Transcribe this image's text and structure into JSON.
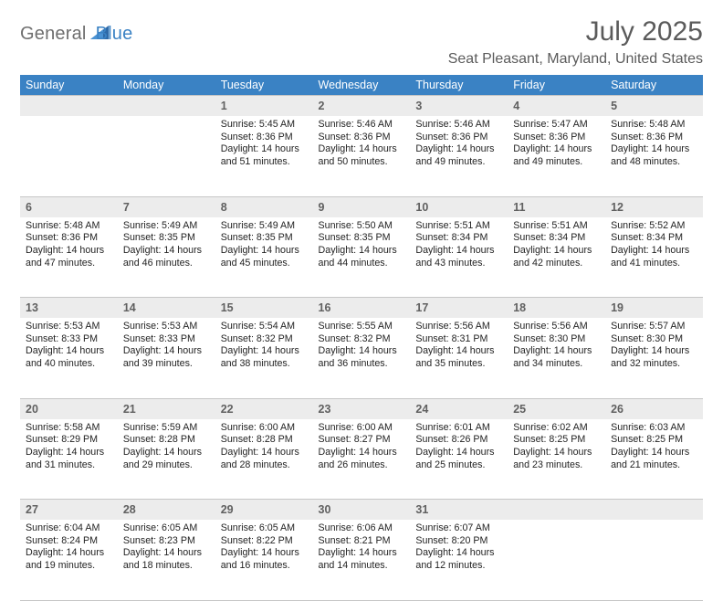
{
  "brand": {
    "part1": "General",
    "part2": "Blue"
  },
  "title": "July 2025",
  "location": "Seat Pleasant, Maryland, United States",
  "colors": {
    "header_bg": "#3a82c4",
    "header_fg": "#ffffff",
    "daynum_bg": "#ececec",
    "border": "#c6c6c6",
    "text": "#232323",
    "muted": "#5b5b5b"
  },
  "typography": {
    "body_size_pt": 8,
    "daynum_size_pt": 9.5,
    "title_size_pt": 22
  },
  "headers": [
    "Sunday",
    "Monday",
    "Tuesday",
    "Wednesday",
    "Thursday",
    "Friday",
    "Saturday"
  ],
  "weeks": [
    [
      null,
      null,
      {
        "n": "1",
        "sr": "Sunrise: 5:45 AM",
        "ss": "Sunset: 8:36 PM",
        "d1": "Daylight: 14 hours",
        "d2": "and 51 minutes."
      },
      {
        "n": "2",
        "sr": "Sunrise: 5:46 AM",
        "ss": "Sunset: 8:36 PM",
        "d1": "Daylight: 14 hours",
        "d2": "and 50 minutes."
      },
      {
        "n": "3",
        "sr": "Sunrise: 5:46 AM",
        "ss": "Sunset: 8:36 PM",
        "d1": "Daylight: 14 hours",
        "d2": "and 49 minutes."
      },
      {
        "n": "4",
        "sr": "Sunrise: 5:47 AM",
        "ss": "Sunset: 8:36 PM",
        "d1": "Daylight: 14 hours",
        "d2": "and 49 minutes."
      },
      {
        "n": "5",
        "sr": "Sunrise: 5:48 AM",
        "ss": "Sunset: 8:36 PM",
        "d1": "Daylight: 14 hours",
        "d2": "and 48 minutes."
      }
    ],
    [
      {
        "n": "6",
        "sr": "Sunrise: 5:48 AM",
        "ss": "Sunset: 8:36 PM",
        "d1": "Daylight: 14 hours",
        "d2": "and 47 minutes."
      },
      {
        "n": "7",
        "sr": "Sunrise: 5:49 AM",
        "ss": "Sunset: 8:35 PM",
        "d1": "Daylight: 14 hours",
        "d2": "and 46 minutes."
      },
      {
        "n": "8",
        "sr": "Sunrise: 5:49 AM",
        "ss": "Sunset: 8:35 PM",
        "d1": "Daylight: 14 hours",
        "d2": "and 45 minutes."
      },
      {
        "n": "9",
        "sr": "Sunrise: 5:50 AM",
        "ss": "Sunset: 8:35 PM",
        "d1": "Daylight: 14 hours",
        "d2": "and 44 minutes."
      },
      {
        "n": "10",
        "sr": "Sunrise: 5:51 AM",
        "ss": "Sunset: 8:34 PM",
        "d1": "Daylight: 14 hours",
        "d2": "and 43 minutes."
      },
      {
        "n": "11",
        "sr": "Sunrise: 5:51 AM",
        "ss": "Sunset: 8:34 PM",
        "d1": "Daylight: 14 hours",
        "d2": "and 42 minutes."
      },
      {
        "n": "12",
        "sr": "Sunrise: 5:52 AM",
        "ss": "Sunset: 8:34 PM",
        "d1": "Daylight: 14 hours",
        "d2": "and 41 minutes."
      }
    ],
    [
      {
        "n": "13",
        "sr": "Sunrise: 5:53 AM",
        "ss": "Sunset: 8:33 PM",
        "d1": "Daylight: 14 hours",
        "d2": "and 40 minutes."
      },
      {
        "n": "14",
        "sr": "Sunrise: 5:53 AM",
        "ss": "Sunset: 8:33 PM",
        "d1": "Daylight: 14 hours",
        "d2": "and 39 minutes."
      },
      {
        "n": "15",
        "sr": "Sunrise: 5:54 AM",
        "ss": "Sunset: 8:32 PM",
        "d1": "Daylight: 14 hours",
        "d2": "and 38 minutes."
      },
      {
        "n": "16",
        "sr": "Sunrise: 5:55 AM",
        "ss": "Sunset: 8:32 PM",
        "d1": "Daylight: 14 hours",
        "d2": "and 36 minutes."
      },
      {
        "n": "17",
        "sr": "Sunrise: 5:56 AM",
        "ss": "Sunset: 8:31 PM",
        "d1": "Daylight: 14 hours",
        "d2": "and 35 minutes."
      },
      {
        "n": "18",
        "sr": "Sunrise: 5:56 AM",
        "ss": "Sunset: 8:30 PM",
        "d1": "Daylight: 14 hours",
        "d2": "and 34 minutes."
      },
      {
        "n": "19",
        "sr": "Sunrise: 5:57 AM",
        "ss": "Sunset: 8:30 PM",
        "d1": "Daylight: 14 hours",
        "d2": "and 32 minutes."
      }
    ],
    [
      {
        "n": "20",
        "sr": "Sunrise: 5:58 AM",
        "ss": "Sunset: 8:29 PM",
        "d1": "Daylight: 14 hours",
        "d2": "and 31 minutes."
      },
      {
        "n": "21",
        "sr": "Sunrise: 5:59 AM",
        "ss": "Sunset: 8:28 PM",
        "d1": "Daylight: 14 hours",
        "d2": "and 29 minutes."
      },
      {
        "n": "22",
        "sr": "Sunrise: 6:00 AM",
        "ss": "Sunset: 8:28 PM",
        "d1": "Daylight: 14 hours",
        "d2": "and 28 minutes."
      },
      {
        "n": "23",
        "sr": "Sunrise: 6:00 AM",
        "ss": "Sunset: 8:27 PM",
        "d1": "Daylight: 14 hours",
        "d2": "and 26 minutes."
      },
      {
        "n": "24",
        "sr": "Sunrise: 6:01 AM",
        "ss": "Sunset: 8:26 PM",
        "d1": "Daylight: 14 hours",
        "d2": "and 25 minutes."
      },
      {
        "n": "25",
        "sr": "Sunrise: 6:02 AM",
        "ss": "Sunset: 8:25 PM",
        "d1": "Daylight: 14 hours",
        "d2": "and 23 minutes."
      },
      {
        "n": "26",
        "sr": "Sunrise: 6:03 AM",
        "ss": "Sunset: 8:25 PM",
        "d1": "Daylight: 14 hours",
        "d2": "and 21 minutes."
      }
    ],
    [
      {
        "n": "27",
        "sr": "Sunrise: 6:04 AM",
        "ss": "Sunset: 8:24 PM",
        "d1": "Daylight: 14 hours",
        "d2": "and 19 minutes."
      },
      {
        "n": "28",
        "sr": "Sunrise: 6:05 AM",
        "ss": "Sunset: 8:23 PM",
        "d1": "Daylight: 14 hours",
        "d2": "and 18 minutes."
      },
      {
        "n": "29",
        "sr": "Sunrise: 6:05 AM",
        "ss": "Sunset: 8:22 PM",
        "d1": "Daylight: 14 hours",
        "d2": "and 16 minutes."
      },
      {
        "n": "30",
        "sr": "Sunrise: 6:06 AM",
        "ss": "Sunset: 8:21 PM",
        "d1": "Daylight: 14 hours",
        "d2": "and 14 minutes."
      },
      {
        "n": "31",
        "sr": "Sunrise: 6:07 AM",
        "ss": "Sunset: 8:20 PM",
        "d1": "Daylight: 14 hours",
        "d2": "and 12 minutes."
      },
      null,
      null
    ]
  ]
}
